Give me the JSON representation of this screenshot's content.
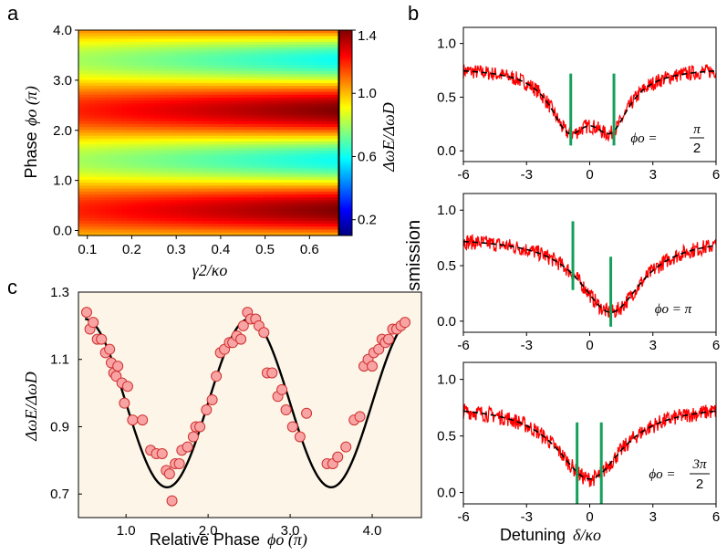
{
  "chart_data": [
    {
      "panel": "a",
      "type": "heatmap",
      "panel_label": "a",
      "ylabel_text": "Phase",
      "ylabel_math": "ϕo (π)",
      "xlabel_math": "γ2/κo",
      "colorbar_label": "ΔωE/ΔωD",
      "x_ticks": [
        "0.1",
        "0.2",
        "0.3",
        "0.4",
        "0.5",
        "0.6"
      ],
      "y_ticks": [
        "0.0",
        "1.0",
        "2.0",
        "3.0",
        "4.0"
      ],
      "colorbar_ticks": [
        "1.4",
        "1.0",
        "0.6",
        "0.2"
      ],
      "xlim": [
        0.08,
        0.665
      ],
      "ylim": [
        -0.1,
        4.0
      ],
      "clim": [
        0.1,
        1.4
      ],
      "colormap": "jet",
      "model": "ratio = 1 + A(γ2)·cos(π·ϕo + 0.5π); A grows with γ2 from 0.2 to 0.4",
      "colorbar_colors": [
        "#00007f",
        "#0000ff",
        "#0080ff",
        "#00ffff",
        "#80ff80",
        "#ffff00",
        "#ff8000",
        "#ff0000",
        "#7f0000"
      ]
    },
    {
      "panel": "b",
      "type": "line",
      "panel_label": "b",
      "ylabel": "Transmission",
      "xlabel_text": "Detuning",
      "xlabel_math": "δ/κo",
      "x_ticks": [
        "-6",
        "-3",
        "0",
        "3",
        "6"
      ],
      "y_ticks": [
        "0.0",
        "0.5",
        "1.0"
      ],
      "xlim": [
        -6,
        6
      ],
      "ylim": [
        -0.1,
        1.15
      ],
      "subplots": [
        {
          "annotation": "ϕo =",
          "annotation_frac_num": "π",
          "annotation_frac_den": "2",
          "baseline": 0.78,
          "dips": [
            {
              "center": -1.0,
              "width": 1.1,
              "depth": 0.5
            },
            {
              "center": 1.0,
              "width": 1.1,
              "depth": 0.5
            }
          ],
          "green_lines": [
            {
              "x": -0.9,
              "y_from": 0.05,
              "y_to": 0.72
            },
            {
              "x": 1.15,
              "y_from": 0.05,
              "y_to": 0.72
            }
          ]
        },
        {
          "annotation": "ϕo = π",
          "baseline": 0.76,
          "dips": [
            {
              "center": 1.0,
              "width": 1.8,
              "depth": 0.68
            }
          ],
          "green_lines": [
            {
              "x": -0.8,
              "y_from": 0.28,
              "y_to": 0.9
            },
            {
              "x": 1.0,
              "y_from": -0.05,
              "y_to": 0.58
            }
          ]
        },
        {
          "annotation": "ϕo =",
          "annotation_frac_num": "3π",
          "annotation_frac_den": "2",
          "baseline": 0.78,
          "dips": [
            {
              "center": 0.0,
              "width": 1.9,
              "depth": 0.66
            }
          ],
          "green_lines": [
            {
              "x": -0.6,
              "y_from": -0.1,
              "y_to": 0.62
            },
            {
              "x": 0.55,
              "y_from": -0.1,
              "y_to": 0.62
            }
          ]
        }
      ],
      "series_colors": {
        "data": "#ff0000",
        "fit": "#000000",
        "markers": "#14a05a"
      }
    },
    {
      "panel": "c",
      "type": "scatter",
      "panel_label": "c",
      "ylabel_math": "ΔωE/ΔωD",
      "xlabel_text": "Relative Phase",
      "xlabel_math": "ϕo (π)",
      "x_ticks": [
        "1.0",
        "2.0",
        "3.0",
        "4.0"
      ],
      "y_ticks": [
        "0.7",
        "0.9",
        "1.1",
        "1.3"
      ],
      "xlim": [
        0.42,
        4.6
      ],
      "ylim": [
        0.63,
        1.3
      ],
      "fit": {
        "mean": 0.97,
        "amplitude": 0.25,
        "period": 2.0,
        "peak_at": 0.5
      },
      "points": [
        [
          0.52,
          1.24
        ],
        [
          0.56,
          1.19
        ],
        [
          0.6,
          1.21
        ],
        [
          0.65,
          1.16
        ],
        [
          0.7,
          1.16
        ],
        [
          0.75,
          1.12
        ],
        [
          0.8,
          1.13
        ],
        [
          0.82,
          1.09
        ],
        [
          0.85,
          1.06
        ],
        [
          0.88,
          1.05
        ],
        [
          0.9,
          1.08
        ],
        [
          0.95,
          1.03
        ],
        [
          0.98,
          0.97
        ],
        [
          1.02,
          1.02
        ],
        [
          1.08,
          0.92
        ],
        [
          1.2,
          0.92
        ],
        [
          1.3,
          0.83
        ],
        [
          1.37,
          0.82
        ],
        [
          1.44,
          0.82
        ],
        [
          1.49,
          0.77
        ],
        [
          1.53,
          0.76
        ],
        [
          1.56,
          0.68
        ],
        [
          1.6,
          0.79
        ],
        [
          1.65,
          0.79
        ],
        [
          1.68,
          0.83
        ],
        [
          1.75,
          0.84
        ],
        [
          1.82,
          0.87
        ],
        [
          1.85,
          0.9
        ],
        [
          1.9,
          0.9
        ],
        [
          1.98,
          0.95
        ],
        [
          2.05,
          0.98
        ],
        [
          2.1,
          1.05
        ],
        [
          2.15,
          1.12
        ],
        [
          2.2,
          1.13
        ],
        [
          2.26,
          1.15
        ],
        [
          2.3,
          1.15
        ],
        [
          2.35,
          1.17
        ],
        [
          2.4,
          1.16
        ],
        [
          2.43,
          1.2
        ],
        [
          2.48,
          1.24
        ],
        [
          2.52,
          1.22
        ],
        [
          2.58,
          1.22
        ],
        [
          2.62,
          1.2
        ],
        [
          2.68,
          1.18
        ],
        [
          2.72,
          1.06
        ],
        [
          2.78,
          1.06
        ],
        [
          2.85,
          0.99
        ],
        [
          2.9,
          1.01
        ],
        [
          2.95,
          0.95
        ],
        [
          3.03,
          0.9
        ],
        [
          3.12,
          0.87
        ],
        [
          3.2,
          0.94
        ],
        [
          3.45,
          0.79
        ],
        [
          3.52,
          0.79
        ],
        [
          3.58,
          0.81
        ],
        [
          3.68,
          0.84
        ],
        [
          3.78,
          0.92
        ],
        [
          3.85,
          0.93
        ],
        [
          3.9,
          1.08
        ],
        [
          3.95,
          1.1
        ],
        [
          4.0,
          1.08
        ],
        [
          4.02,
          1.12
        ],
        [
          4.08,
          1.13
        ],
        [
          4.12,
          1.16
        ],
        [
          4.16,
          1.15
        ],
        [
          4.2,
          1.16
        ],
        [
          4.25,
          1.19
        ],
        [
          4.3,
          1.19
        ],
        [
          4.35,
          1.2
        ],
        [
          4.4,
          1.21
        ]
      ],
      "marker_fill": "#f9a4a4",
      "marker_edge": "#d03030",
      "background": "#fdf6e8"
    }
  ]
}
